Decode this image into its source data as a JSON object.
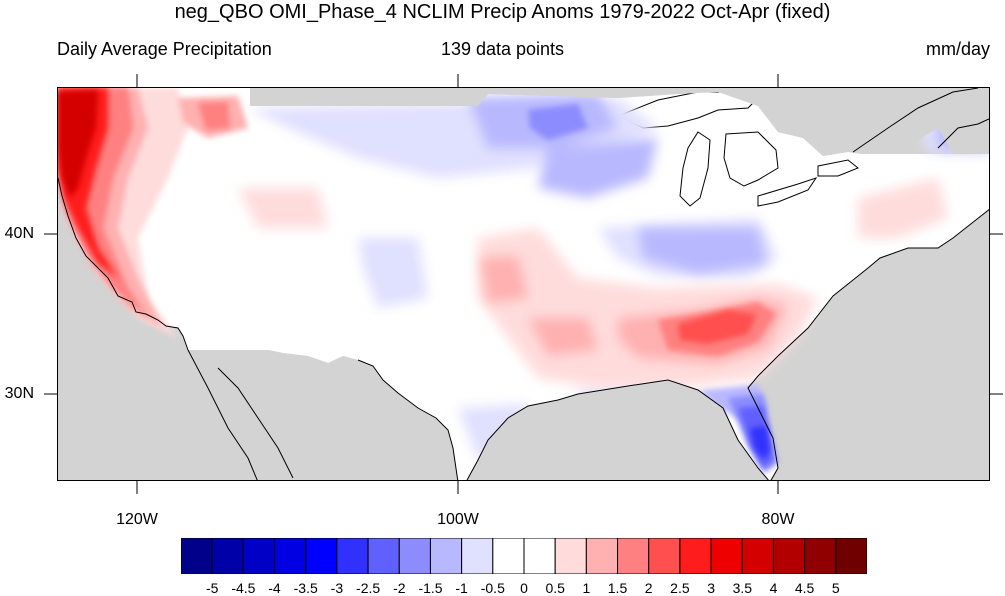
{
  "title": "neg_QBO OMI_Phase_4 NCLIM Precip Anoms 1979-2022 Oct-Apr (fixed)",
  "subtitle_left": "Daily Average Precipitation",
  "subtitle_center": "139 data points",
  "subtitle_right": "mm/day",
  "axes": {
    "lat_labels": [
      "40N",
      "30N"
    ],
    "lon_labels": [
      "120W",
      "100W",
      "80W"
    ],
    "lat_range": [
      24.5,
      49.5
    ],
    "lon_range": [
      -125,
      -67
    ]
  },
  "colorbar": {
    "labels": [
      "-5",
      "-4.5",
      "-4",
      "-3.5",
      "-3",
      "-2.5",
      "-2",
      "-1.5",
      "-1",
      "-0.5",
      "0",
      "0.5",
      "1",
      "1.5",
      "2",
      "2.5",
      "3",
      "3.5",
      "4",
      "4.5",
      "5"
    ],
    "colors": [
      "#00008b",
      "#0000a8",
      "#0000c6",
      "#0000e3",
      "#0000ff",
      "#3030ff",
      "#6060ff",
      "#8c8cff",
      "#b8b8ff",
      "#e0e0ff",
      "#ffffff",
      "#ffffff",
      "#ffdcdc",
      "#ffb0b0",
      "#ff8080",
      "#ff5050",
      "#ff1c1c",
      "#ee0000",
      "#d40000",
      "#b20000",
      "#900000",
      "#6f0000"
    ]
  },
  "map_colors": {
    "missing": "#d3d3d3",
    "land": "#ffffff",
    "coast": "#000000"
  },
  "regions": [
    {
      "name": "Pacific Northwest coast",
      "anomaly": "3 to 5",
      "color": "#ee0000"
    },
    {
      "name": "California coast and Sierra",
      "anomaly": "2 to 4",
      "color": "#ff5050"
    },
    {
      "name": "Northern Rockies",
      "anomaly": "1 to 2.5",
      "color": "#ff8080"
    },
    {
      "name": "Tennessee Valley",
      "anomaly": "1 to 2",
      "color": "#ff8080"
    },
    {
      "name": "Florida",
      "anomaly": "-1 to -2.5",
      "color": "#6060ff"
    },
    {
      "name": "Ohio Valley",
      "anomaly": "-0.5 to -1",
      "color": "#b8b8ff"
    },
    {
      "name": "Upper Midwest",
      "anomaly": "-0.5 to -1.5",
      "color": "#b8b8ff"
    },
    {
      "name": "Southern Plains",
      "anomaly": "0.5 to 1",
      "color": "#ffb0b0"
    }
  ]
}
